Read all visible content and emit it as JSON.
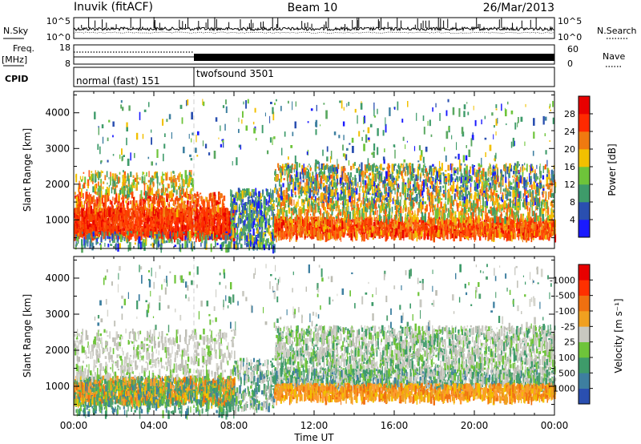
{
  "header": {
    "station": "Inuvik (fitACF)",
    "beam": "Beam 10",
    "date": "26/Mar/2013"
  },
  "strips": {
    "nsky": {
      "label": "N.Sky",
      "left_ticks": [
        "10^5",
        "10^0"
      ]
    },
    "nsearch": {
      "label": "N.Search",
      "right_ticks": [
        "10^5",
        "10^0"
      ]
    },
    "freq": {
      "label_line1": "Freq.",
      "label_line2": "[MHz]",
      "left_ticks": [
        "18",
        "8"
      ]
    },
    "nave": {
      "label": "Nave",
      "right_ticks": [
        "60",
        "0"
      ]
    },
    "cpid": {
      "label": "CPID",
      "segments": [
        {
          "name": "normal (fast) 151",
          "start_hour": 0,
          "end_hour": 6
        },
        {
          "name": "twofsound 3501",
          "start_hour": 6,
          "end_hour": 24
        }
      ]
    }
  },
  "chart_data": [
    {
      "type": "heatmap",
      "ylabel": "Slant Range [km]",
      "yticks": [
        "1000",
        "2000",
        "3000",
        "4000"
      ],
      "ylim": [
        200,
        4600
      ],
      "xlim_hours": [
        0,
        24
      ],
      "colorbar": {
        "label": "Power [dB]",
        "tick_labels": [
          "4",
          "8",
          "12",
          "16",
          "20",
          "24",
          "28"
        ],
        "colors": [
          "#1a1aff",
          "#2a4fb0",
          "#3e9b6a",
          "#6ec43a",
          "#f2c000",
          "#f07a10",
          "#ff2a00",
          "#e80000"
        ]
      }
    },
    {
      "type": "heatmap",
      "ylabel": "Slant Range [km]",
      "yticks": [
        "1000",
        "2000",
        "3000",
        "4000"
      ],
      "ylim": [
        200,
        4600
      ],
      "xlim_hours": [
        0,
        24
      ],
      "colorbar": {
        "label": "Velocity [m s⁻¹]",
        "tick_labels": [
          "1000",
          "500",
          "100",
          "25",
          "-25",
          "-100",
          "-500",
          "-1000"
        ],
        "colors": [
          "#2a4fb0",
          "#3e7fa0",
          "#3e9b6a",
          "#6ec43a",
          "#c8c8c0",
          "#f0a020",
          "#f07010",
          "#ff3000",
          "#e80000"
        ]
      }
    }
  ],
  "xaxis": {
    "label": "Time UT",
    "tick_labels": [
      "00:00",
      "04:00",
      "08:00",
      "12:00",
      "16:00",
      "20:00",
      "00:00"
    ]
  },
  "colors": {
    "background": "#ffffff",
    "axes": "#000000"
  }
}
